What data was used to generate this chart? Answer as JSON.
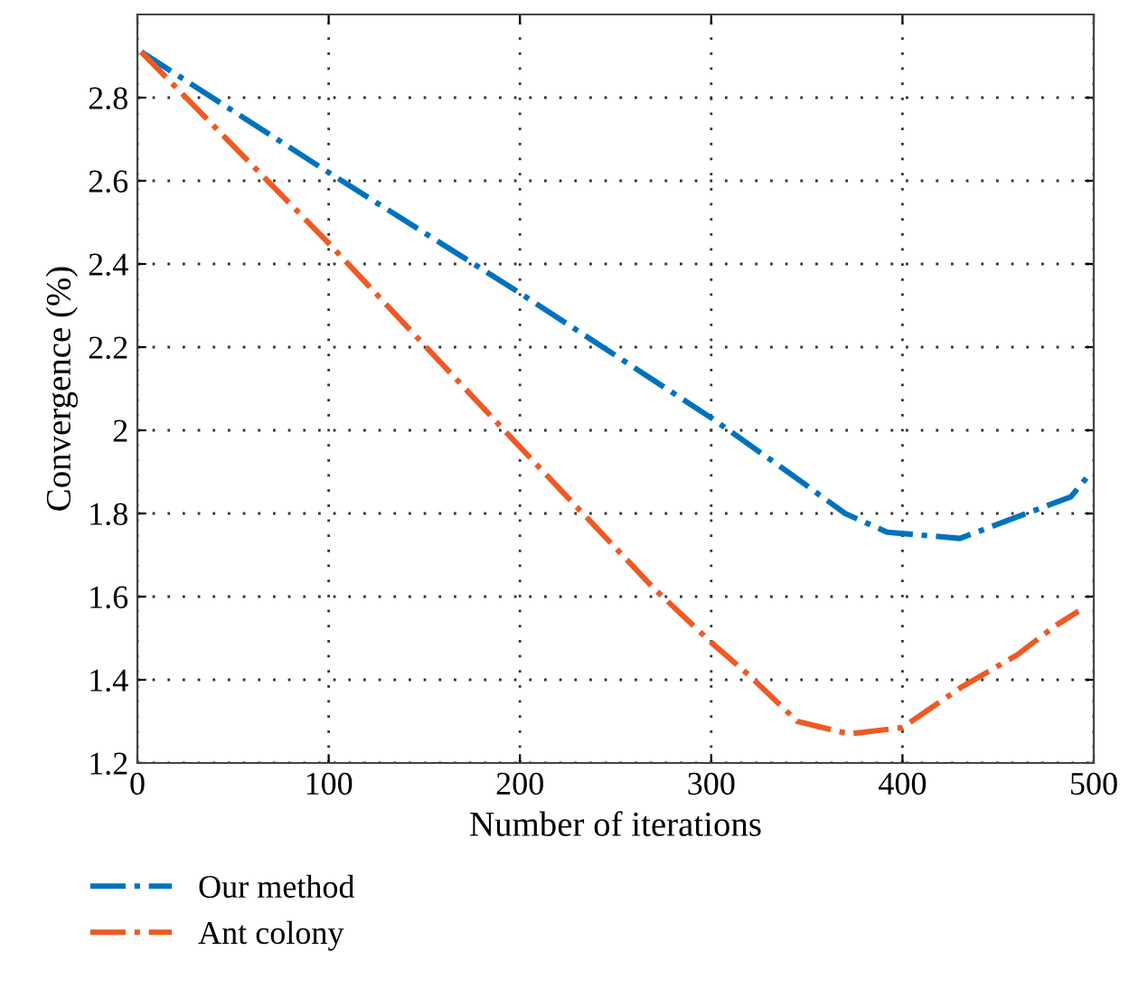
{
  "chart_data": {
    "type": "line",
    "xlabel": "Number of iterations",
    "ylabel": "Convergence (%)",
    "xlim": [
      0,
      500
    ],
    "ylim": [
      1.2,
      3.0
    ],
    "xticks": [
      0,
      100,
      200,
      300,
      400,
      500
    ],
    "yticks": [
      1.2,
      1.4,
      1.6,
      1.8,
      2,
      2.2,
      2.4,
      2.6,
      2.8
    ],
    "grid": true,
    "legend": "bottom left",
    "line_style": "dashdot",
    "series": [
      {
        "name": "Our method",
        "color": "#0072bd",
        "x": [
          2,
          100,
          200,
          300,
          340,
          370,
          392,
          430,
          488,
          497
        ],
        "values": [
          2.91,
          2.62,
          2.33,
          2.03,
          1.9,
          1.8,
          1.755,
          1.74,
          1.84,
          1.89
        ]
      },
      {
        "name": "Ant colony",
        "color": "#ee5a24",
        "x": [
          2,
          100,
          200,
          270,
          300,
          320,
          345,
          372,
          400,
          430,
          460,
          480,
          492
        ],
        "values": [
          2.91,
          2.45,
          1.96,
          1.62,
          1.49,
          1.41,
          1.3,
          1.27,
          1.285,
          1.38,
          1.46,
          1.53,
          1.565
        ]
      }
    ]
  }
}
